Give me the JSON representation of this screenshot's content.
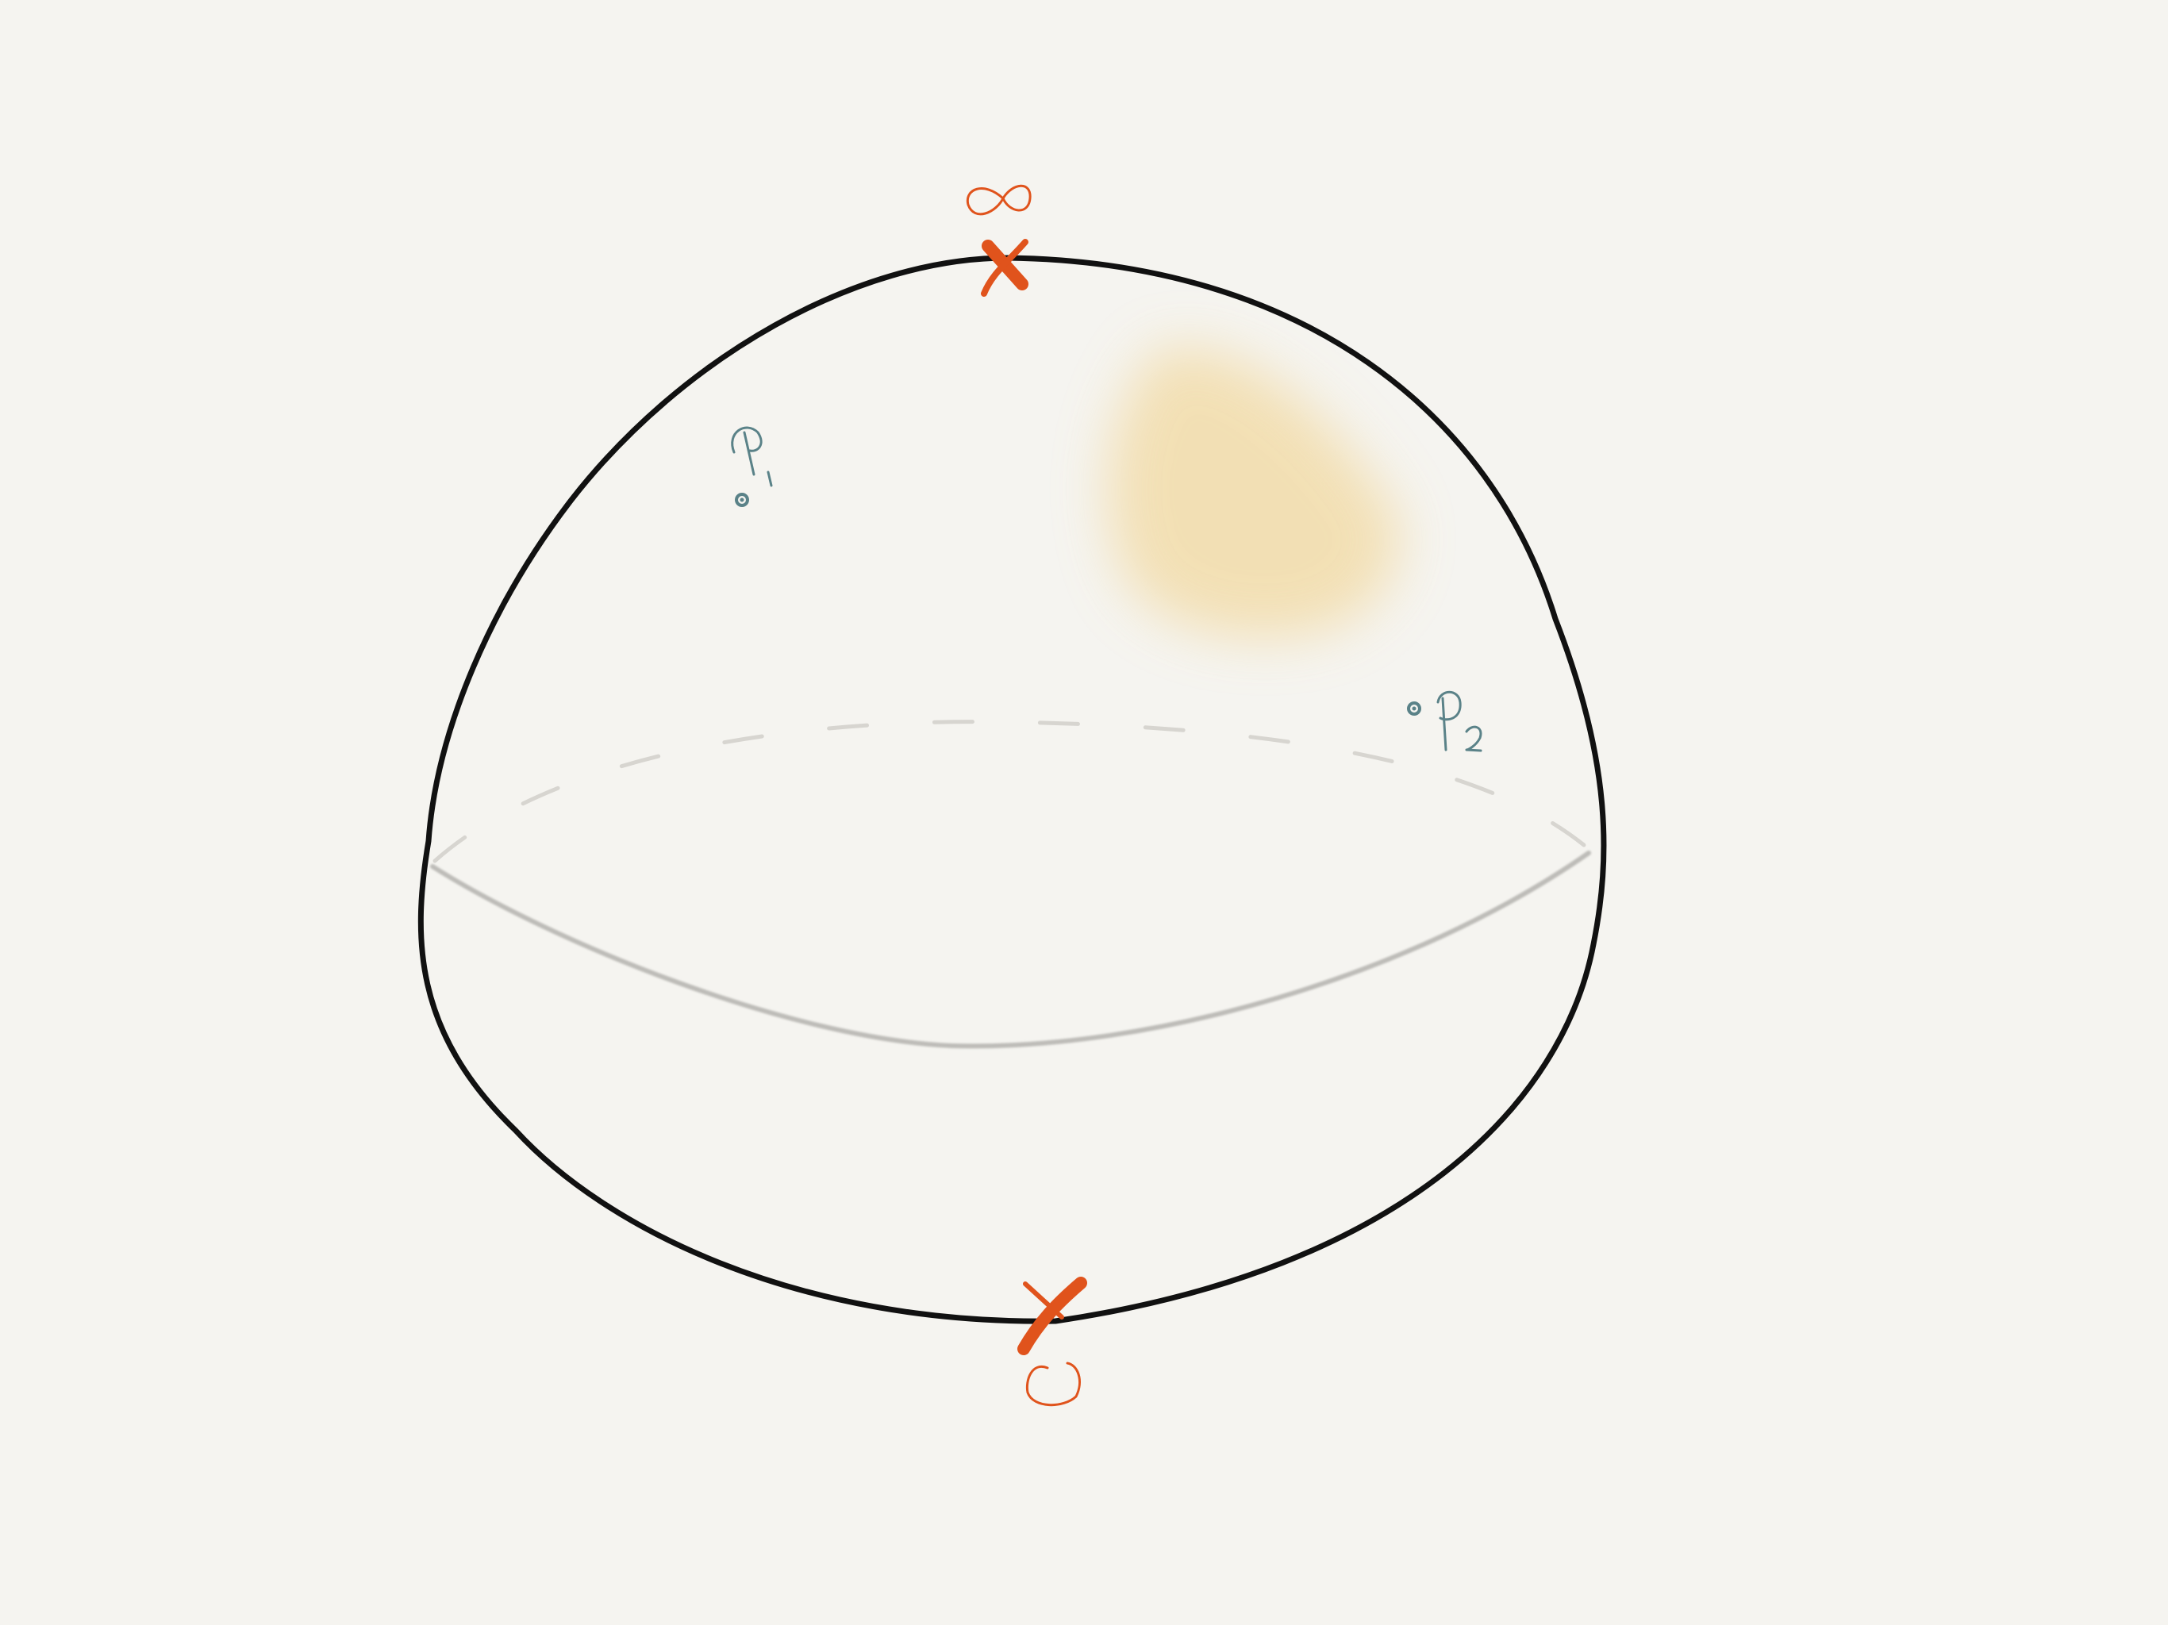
{
  "colors": {
    "background": "#f5f4f0",
    "sphere_outline": "#111111",
    "equator": "#bdbcb8",
    "marker_orange": "#e0531c",
    "point_teal": "#5a8288",
    "highlight_yellow": "#f2d9a0"
  },
  "labels": {
    "north_pole": "∞",
    "south_pole": "0",
    "point_1": "P1",
    "point_2": "P2"
  },
  "icons": {
    "north_marker": "x-mark-icon",
    "south_marker": "x-mark-icon"
  }
}
